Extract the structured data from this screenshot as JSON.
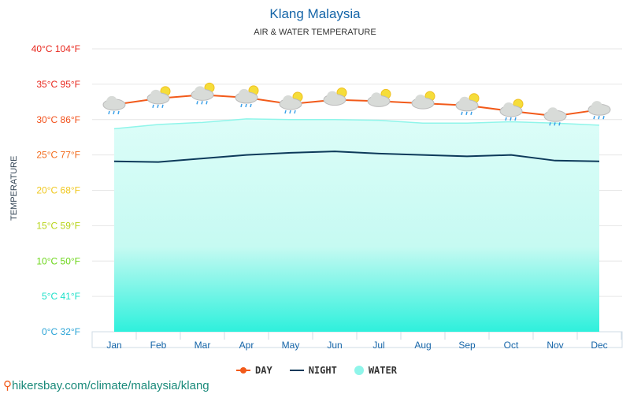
{
  "chart_data": {
    "type": "line",
    "title": "Klang Malaysia",
    "subtitle": "AIR & WATER TEMPERATURE",
    "ylabel": "TEMPERATURE",
    "ylim": [
      0,
      40
    ],
    "grid": true,
    "legend_placement": "bottom",
    "categories": [
      "Jan",
      "Feb",
      "Mar",
      "Apr",
      "May",
      "Jun",
      "Jul",
      "Aug",
      "Sep",
      "Oct",
      "Nov",
      "Dec"
    ],
    "yticks": [
      {
        "label": "0°C 32°F",
        "value": 0,
        "color": "#29a3d6"
      },
      {
        "label": "5°C 41°F",
        "value": 5,
        "color": "#1de0c8"
      },
      {
        "label": "10°C 50°F",
        "value": 10,
        "color": "#6cd61a"
      },
      {
        "label": "15°C 59°F",
        "value": 15,
        "color": "#b8d41a"
      },
      {
        "label": "20°C 68°F",
        "value": 20,
        "color": "#f0c820"
      },
      {
        "label": "25°C 77°F",
        "value": 25,
        "color": "#f26a1a"
      },
      {
        "label": "30°C 86°F",
        "value": 30,
        "color": "#f2501a"
      },
      {
        "label": "35°C 95°F",
        "value": 35,
        "color": "#e8281e"
      },
      {
        "label": "40°C 104°F",
        "value": 40,
        "color": "#e8281e"
      }
    ],
    "series": [
      {
        "name": "DAY",
        "color": "#f25a1a",
        "values": [
          32.1,
          33.0,
          33.5,
          33.1,
          32.2,
          32.8,
          32.6,
          32.3,
          32.0,
          31.2,
          30.5,
          31.4
        ]
      },
      {
        "name": "NIGHT",
        "color": "#0d3a5a",
        "values": [
          24.1,
          24.0,
          24.5,
          25.0,
          25.3,
          25.5,
          25.2,
          25.0,
          24.8,
          25.0,
          24.2,
          24.1
        ]
      },
      {
        "name": "WATER",
        "color": "#8ff5ea",
        "values": [
          28.7,
          29.3,
          29.6,
          30.1,
          30.0,
          30.0,
          29.9,
          29.5,
          29.5,
          29.7,
          29.5,
          29.2
        ]
      }
    ],
    "weather_icons": [
      "rain",
      "sun-rain",
      "sun-rain",
      "sun-rain",
      "sun-rain",
      "partly-cloudy",
      "partly-cloudy",
      "partly-cloudy",
      "sun-rain",
      "sun-rain",
      "rain",
      "rain"
    ]
  },
  "footer": "hikersbay.com/climate/malaysia/klang",
  "footer_icon": "map-pin-icon"
}
